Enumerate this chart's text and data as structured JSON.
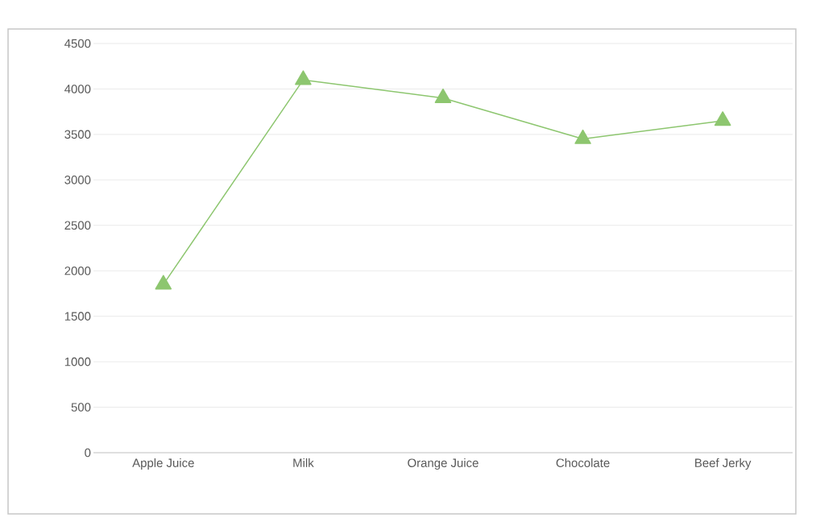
{
  "chart_data": {
    "type": "line",
    "categories": [
      "Apple Juice",
      "Milk",
      "Orange Juice",
      "Chocolate",
      "Beef Jerky"
    ],
    "values": [
      1850,
      4100,
      3900,
      3450,
      3650
    ],
    "color": "#8dc66f",
    "ylim": [
      0,
      4500
    ],
    "yticks": [
      0,
      500,
      1000,
      1500,
      2000,
      2500,
      3000,
      3500,
      4000,
      4500
    ],
    "grid": "y",
    "marker": "triangle",
    "line_style": "solid"
  }
}
